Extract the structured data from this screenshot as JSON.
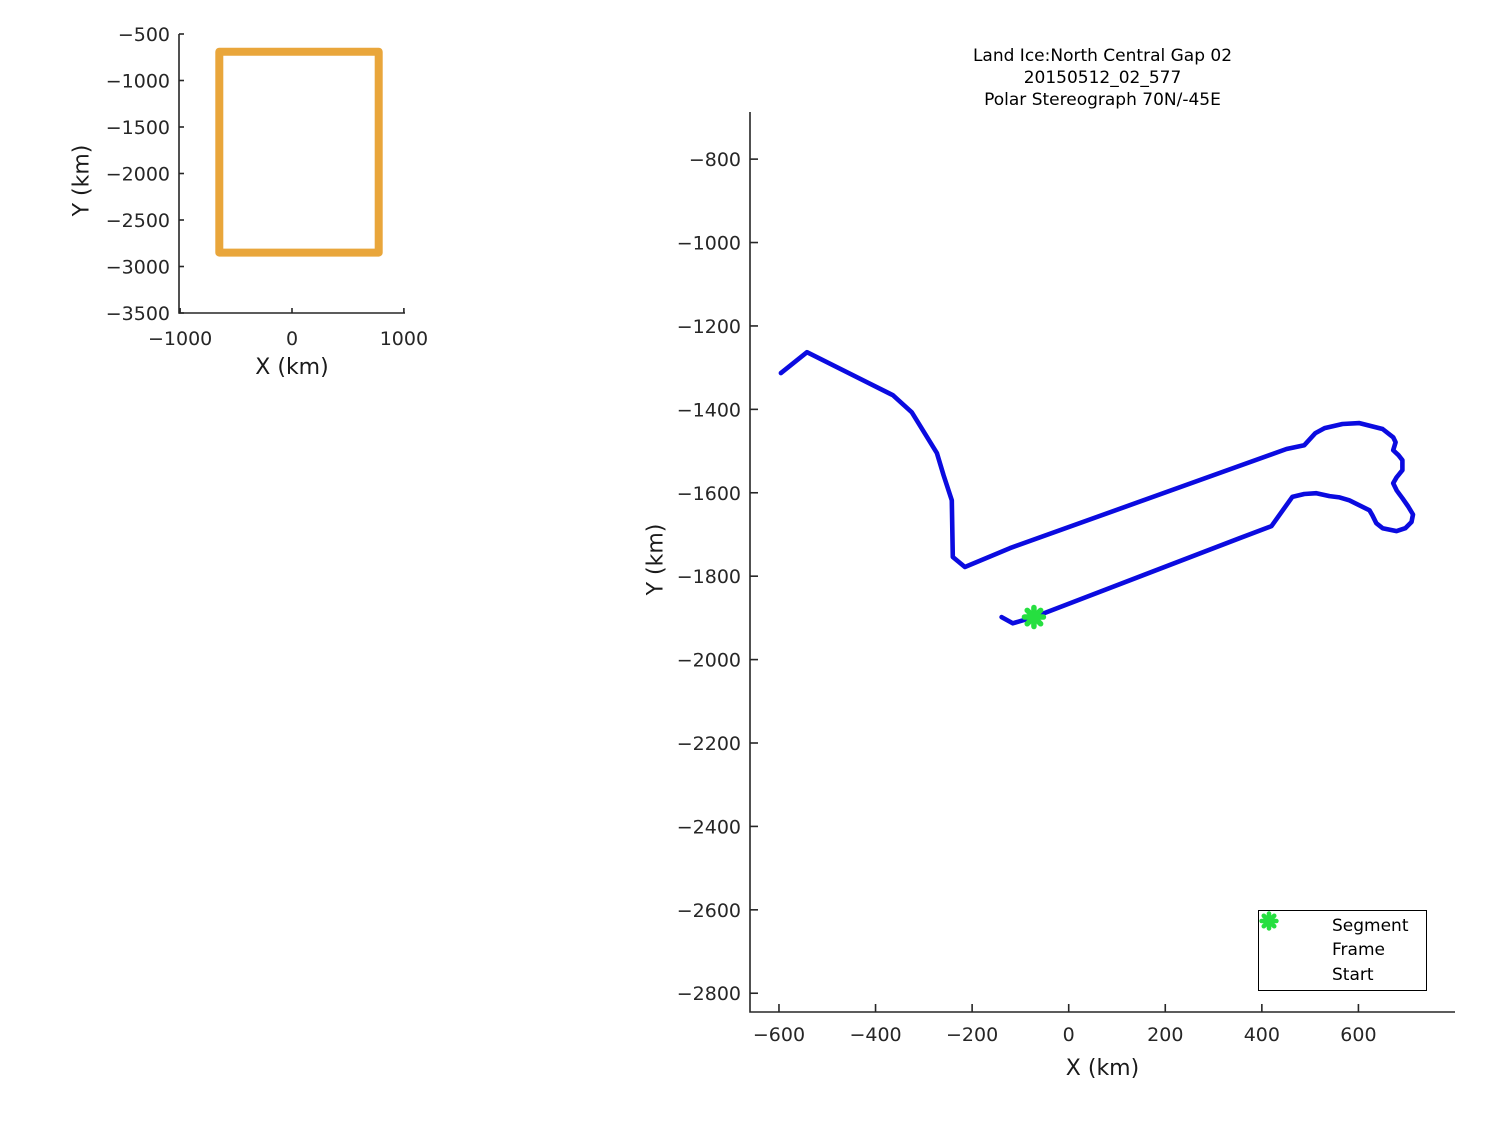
{
  "figure": {
    "background": "#ffffff",
    "axis_color": "#262626",
    "text_color": "#1a1a1a"
  },
  "chart_data": [
    {
      "id": "overview-map",
      "type": "line",
      "title": "",
      "xlabel": "X (km)",
      "ylabel": "Y (km)",
      "xlim": [
        -1010,
        1010
      ],
      "ylim": [
        -3500,
        -500
      ],
      "xticks": [
        -1000,
        0,
        1000
      ],
      "yticks": [
        -500,
        -1000,
        -1500,
        -2000,
        -2500,
        -3000,
        -3500
      ],
      "grid": false,
      "legend": null,
      "series": [
        {
          "name": "coverage-box",
          "color": "#E9A63B",
          "linewidth": 8,
          "x": [
            -650,
            775,
            775,
            -650,
            -650
          ],
          "y": [
            -690,
            -690,
            -2850,
            -2850,
            -690
          ]
        }
      ],
      "markers": []
    },
    {
      "id": "flight-track",
      "type": "line",
      "title": [
        "Land Ice:North Central Gap 02",
        "20150512_02_577",
        "Polar Stereograph 70N/-45E"
      ],
      "xlabel": "X (km)",
      "ylabel": "Y (km)",
      "xlim": [
        -660,
        800
      ],
      "ylim": [
        -2845,
        -687
      ],
      "xticks": [
        -600,
        -400,
        -200,
        0,
        200,
        400,
        600
      ],
      "yticks": [
        -800,
        -1000,
        -1200,
        -1400,
        -1600,
        -1800,
        -2000,
        -2200,
        -2400,
        -2600,
        -2800
      ],
      "grid": false,
      "series": [
        {
          "name": "Segment",
          "color": "#0B0BE0",
          "linewidth": 4.6,
          "x": [
            -596,
            -542,
            -364,
            -325,
            -273,
            -259,
            -242,
            -240,
            -215,
            -122,
            451,
            488,
            511,
            530,
            567,
            602,
            650,
            672,
            677,
            672,
            683,
            691,
            691,
            679,
            672,
            679,
            691,
            703,
            713,
            710,
            697,
            679,
            650,
            637,
            629,
            623,
            602,
            581,
            561,
            540,
            513,
            488,
            463,
            420,
            354,
            -72,
            -116,
            -139
          ],
          "y": [
            -1313,
            -1263,
            -1366,
            -1407,
            -1505,
            -1558,
            -1618,
            -1754,
            -1778,
            -1733,
            -1495,
            -1486,
            -1457,
            -1445,
            -1435,
            -1433,
            -1447,
            -1467,
            -1479,
            -1498,
            -1510,
            -1522,
            -1546,
            -1563,
            -1577,
            -1594,
            -1613,
            -1633,
            -1652,
            -1670,
            -1685,
            -1692,
            -1685,
            -1673,
            -1654,
            -1642,
            -1630,
            -1618,
            -1611,
            -1608,
            -1601,
            -1603,
            -1610,
            -1680,
            -1709,
            -1898,
            -1913,
            -1898
          ]
        }
      ],
      "markers": [
        {
          "name": "Start",
          "shape": "asterisk",
          "color": "#26DF40",
          "x": -72,
          "y": -1898,
          "size": 19
        }
      ],
      "legend": {
        "position": "bottom-right",
        "items": [
          {
            "label": "Segment",
            "marker": "dot",
            "color": "#0B0BE0"
          },
          {
            "label": "Frame",
            "marker": "dot",
            "color": "#E32221"
          },
          {
            "label": "Start",
            "marker": "asterisk",
            "color": "#26DF40"
          }
        ]
      }
    }
  ]
}
